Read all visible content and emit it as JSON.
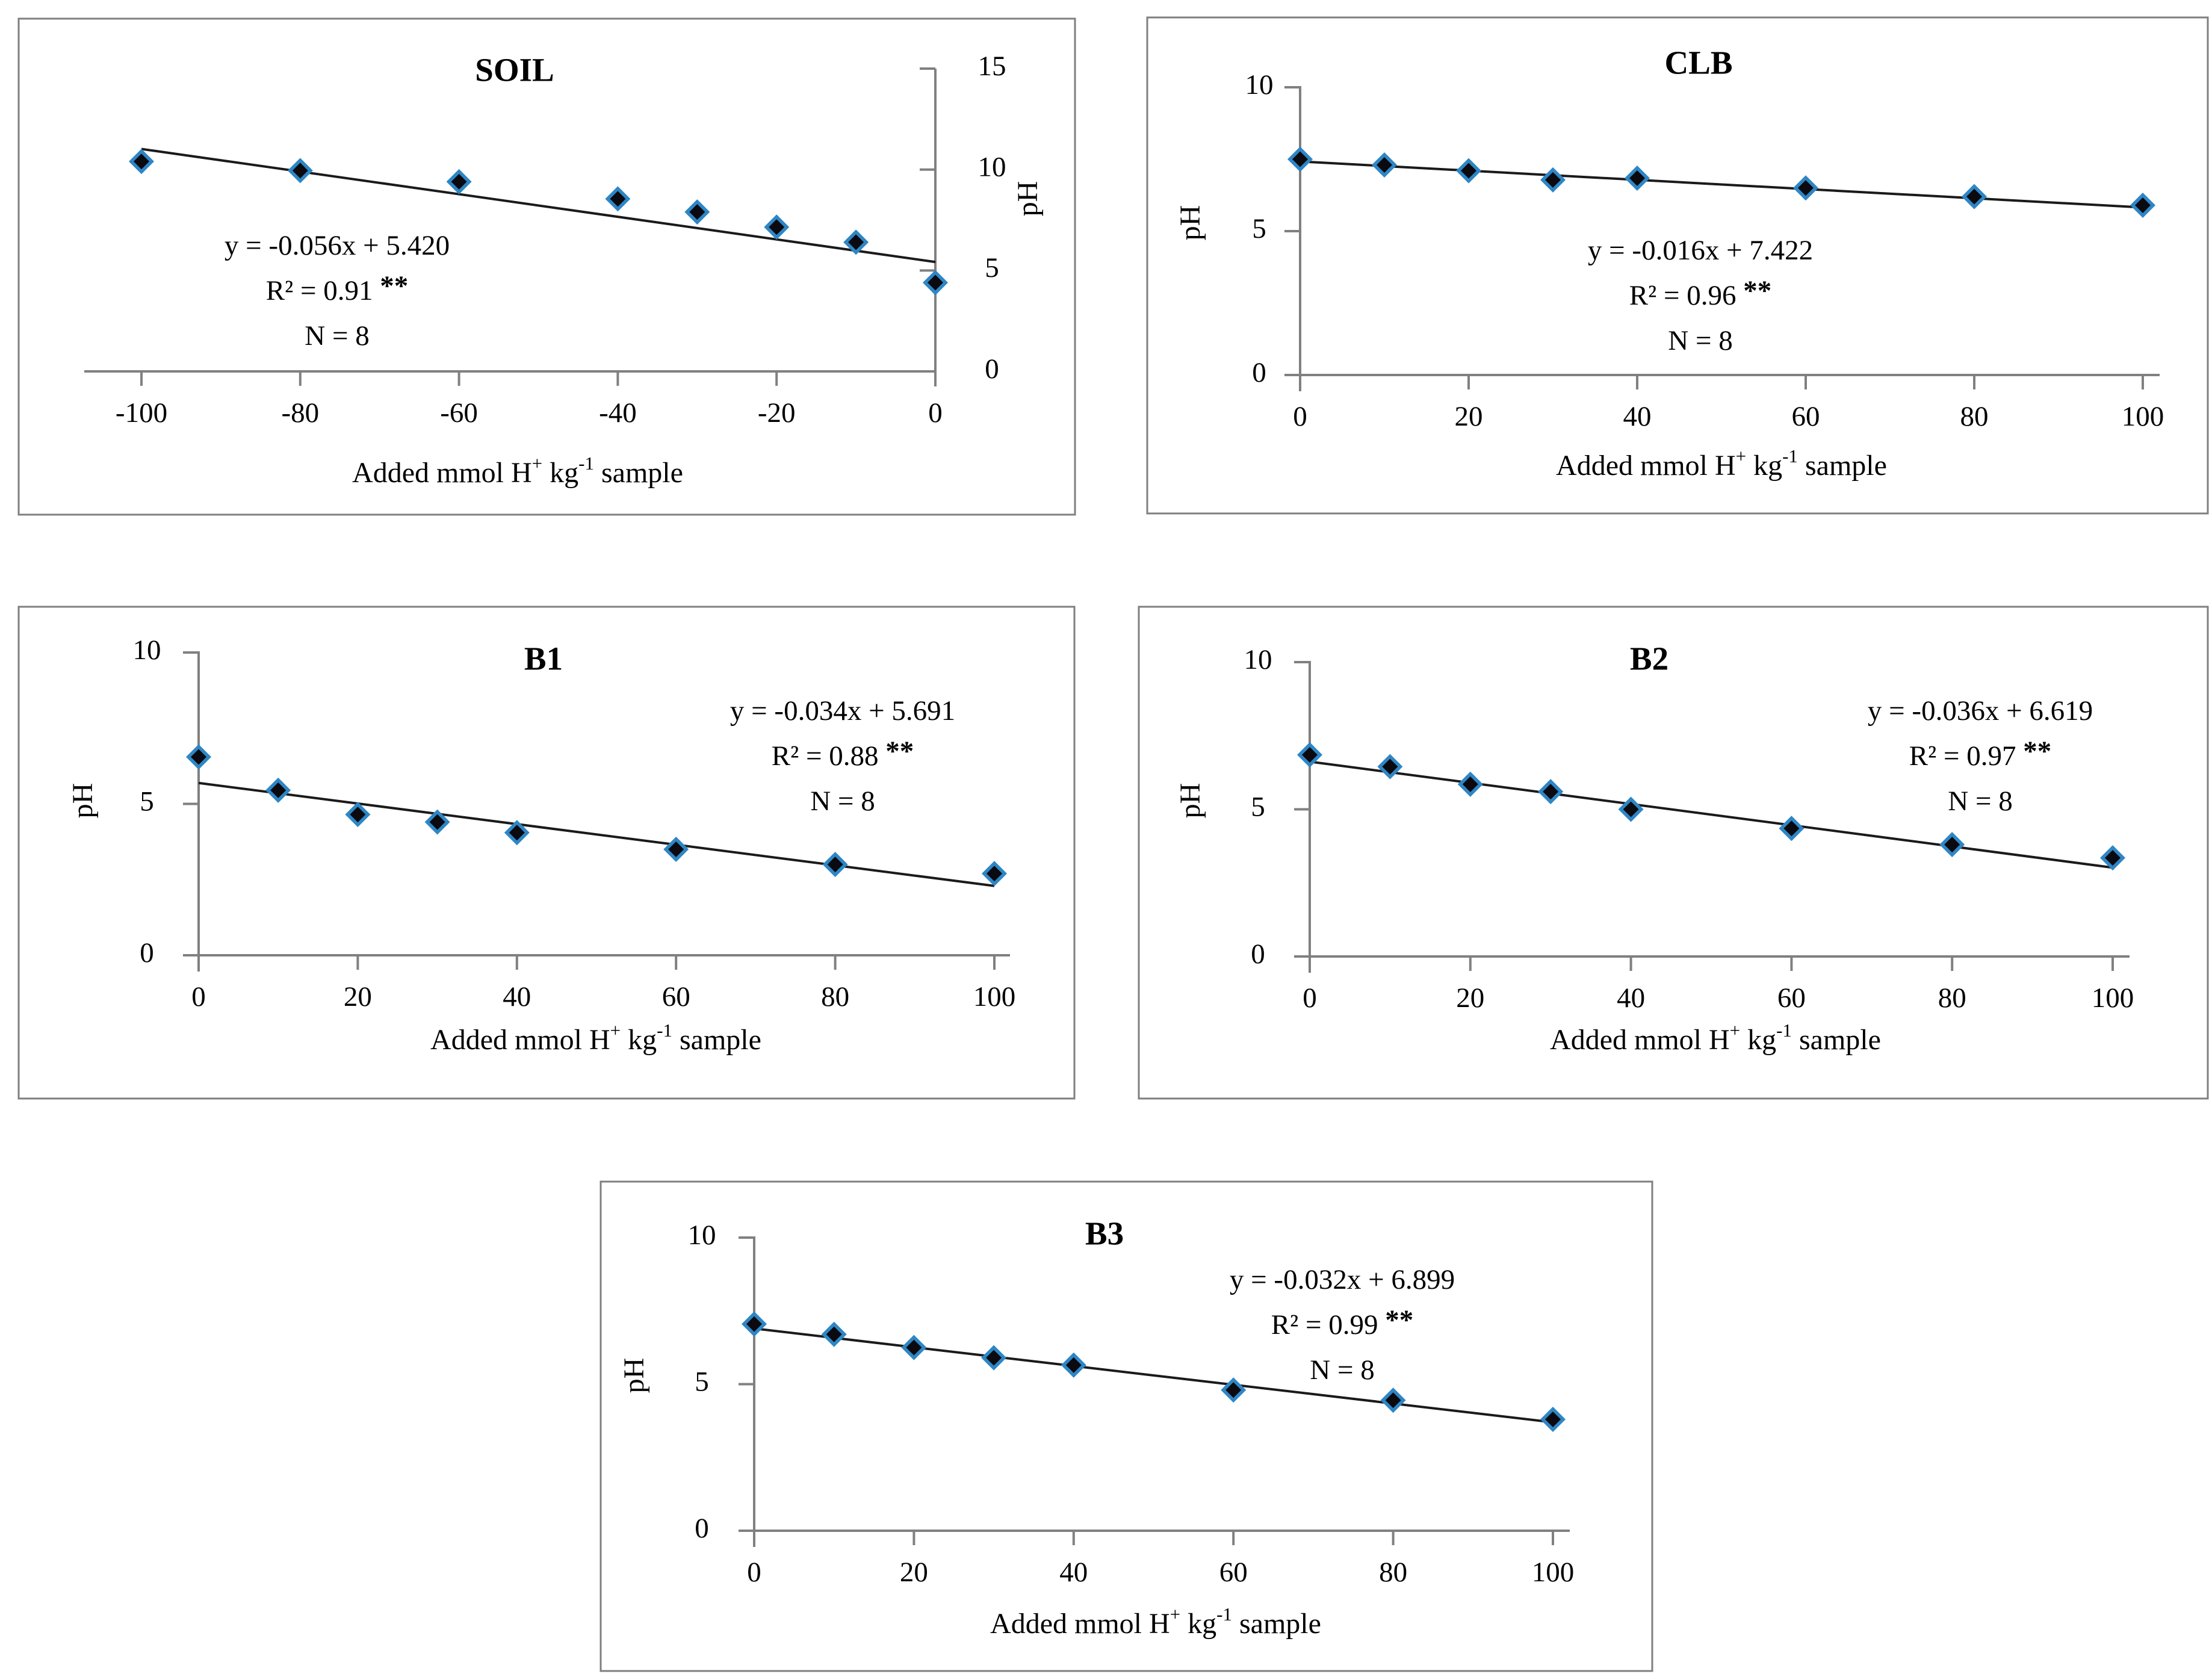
{
  "figure": {
    "background": "#ffffff",
    "panel_border_color": "#7f7f7f",
    "axis_color": "#808080",
    "text_color": "#000000",
    "trend_color": "#1a1a1a",
    "marker": {
      "fill": "#0a0a10",
      "edge": "#2e86c5"
    }
  },
  "chart_data": [
    {
      "id": "soil",
      "type": "scatter",
      "title": "SOIL",
      "equation": "y = -0.056x + 5.420",
      "r_squared": "R² = 0.91",
      "significance": "**",
      "n_label": "N = 8",
      "ylabel": "pH",
      "xlabel_parts": [
        [
          "t",
          "Added mmol H"
        ],
        [
          "s",
          "+"
        ],
        [
          "t",
          " kg"
        ],
        [
          "s",
          "-1"
        ],
        [
          "t",
          " sample"
        ]
      ],
      "axis_side": "right",
      "xlim": [
        -100,
        0
      ],
      "ylim": [
        0,
        15
      ],
      "x_ticks": [
        -100,
        -80,
        -60,
        -40,
        -20,
        0
      ],
      "y_ticks": [
        0,
        5,
        10,
        15
      ],
      "grid": false,
      "points": {
        "x": [
          -100,
          -80,
          -60,
          -40,
          -30,
          -20,
          -10,
          0
        ],
        "ph": [
          10.4,
          9.95,
          9.4,
          8.55,
          7.9,
          7.15,
          6.4,
          4.4
        ]
      },
      "trend": {
        "slope": -0.056,
        "intercept": 5.42,
        "x_start": -100,
        "x_end": 0
      }
    },
    {
      "id": "clb",
      "type": "scatter",
      "title": "CLB",
      "equation": "y = -0.016x + 7.422",
      "r_squared": "R² = 0.96",
      "significance": "**",
      "n_label": "N = 8",
      "ylabel": "pH",
      "xlabel_parts": [
        [
          "t",
          "Added mmol H"
        ],
        [
          "s",
          "+"
        ],
        [
          "t",
          " kg"
        ],
        [
          "s",
          "-1"
        ],
        [
          "t",
          " sample"
        ]
      ],
      "axis_side": "left",
      "xlim": [
        0,
        100
      ],
      "ylim": [
        0,
        10
      ],
      "x_ticks": [
        0,
        20,
        40,
        60,
        80,
        100
      ],
      "y_ticks": [
        0,
        5,
        10
      ],
      "grid": false,
      "points": {
        "x": [
          0,
          10,
          20,
          30,
          40,
          60,
          80,
          100
        ],
        "ph": [
          7.5,
          7.3,
          7.1,
          6.78,
          6.84,
          6.5,
          6.2,
          5.9
        ]
      },
      "trend": {
        "slope": -0.016,
        "intercept": 7.422,
        "x_start": 0,
        "x_end": 100
      }
    },
    {
      "id": "b1",
      "type": "scatter",
      "title": "B1",
      "equation": "y = -0.034x + 5.691",
      "r_squared": "R² = 0.88",
      "significance": "**",
      "n_label": "N = 8",
      "ylabel": "pH",
      "xlabel_parts": [
        [
          "t",
          "Added mmol H"
        ],
        [
          "s",
          "+"
        ],
        [
          "t",
          " kg"
        ],
        [
          "s",
          "-1"
        ],
        [
          "t",
          " sample"
        ]
      ],
      "axis_side": "left",
      "xlim": [
        0,
        100
      ],
      "ylim": [
        0,
        10
      ],
      "x_ticks": [
        0,
        20,
        40,
        60,
        80,
        100
      ],
      "y_ticks": [
        0,
        5,
        10
      ],
      "grid": false,
      "points": {
        "x": [
          0,
          10,
          20,
          30,
          40,
          60,
          80,
          100
        ],
        "ph": [
          6.55,
          5.45,
          4.65,
          4.4,
          4.05,
          3.5,
          3.0,
          2.7
        ]
      },
      "trend": {
        "slope": -0.034,
        "intercept": 5.691,
        "x_start": 0,
        "x_end": 100
      }
    },
    {
      "id": "b2",
      "type": "scatter",
      "title": "B2",
      "equation": "y = -0.036x + 6.619",
      "r_squared": "R² = 0.97",
      "significance": "**",
      "n_label": "N = 8",
      "ylabel": "pH",
      "xlabel_parts": [
        [
          "t",
          "Added mmol H"
        ],
        [
          "s",
          "+"
        ],
        [
          "t",
          " kg"
        ],
        [
          "s",
          "-1"
        ],
        [
          "t",
          " sample"
        ]
      ],
      "axis_side": "left",
      "xlim": [
        0,
        100
      ],
      "ylim": [
        0,
        10
      ],
      "x_ticks": [
        0,
        20,
        40,
        60,
        80,
        100
      ],
      "y_ticks": [
        0,
        5,
        10
      ],
      "grid": false,
      "points": {
        "x": [
          0,
          10,
          20,
          30,
          40,
          60,
          80,
          100
        ],
        "ph": [
          6.85,
          6.45,
          5.85,
          5.6,
          5.0,
          4.35,
          3.8,
          3.35
        ]
      },
      "trend": {
        "slope": -0.036,
        "intercept": 6.619,
        "x_start": 0,
        "x_end": 100
      }
    },
    {
      "id": "b3",
      "type": "scatter",
      "title": "B3",
      "equation": "y = -0.032x + 6.899",
      "r_squared": "R² = 0.99",
      "significance": "**",
      "n_label": "N = 8",
      "ylabel": "pH",
      "xlabel_parts": [
        [
          "t",
          "Added mmol H"
        ],
        [
          "s",
          "+"
        ],
        [
          "t",
          " kg"
        ],
        [
          "s",
          "-1"
        ],
        [
          "t",
          " sample"
        ]
      ],
      "axis_side": "left",
      "xlim": [
        0,
        100
      ],
      "ylim": [
        0,
        10
      ],
      "x_ticks": [
        0,
        20,
        40,
        60,
        80,
        100
      ],
      "y_ticks": [
        0,
        5,
        10
      ],
      "grid": false,
      "points": {
        "x": [
          0,
          10,
          20,
          30,
          40,
          60,
          80,
          100
        ],
        "ph": [
          7.05,
          6.7,
          6.25,
          5.9,
          5.65,
          4.8,
          4.45,
          3.8
        ]
      },
      "trend": {
        "slope": -0.032,
        "intercept": 6.899,
        "x_start": 0,
        "x_end": 100
      }
    }
  ]
}
